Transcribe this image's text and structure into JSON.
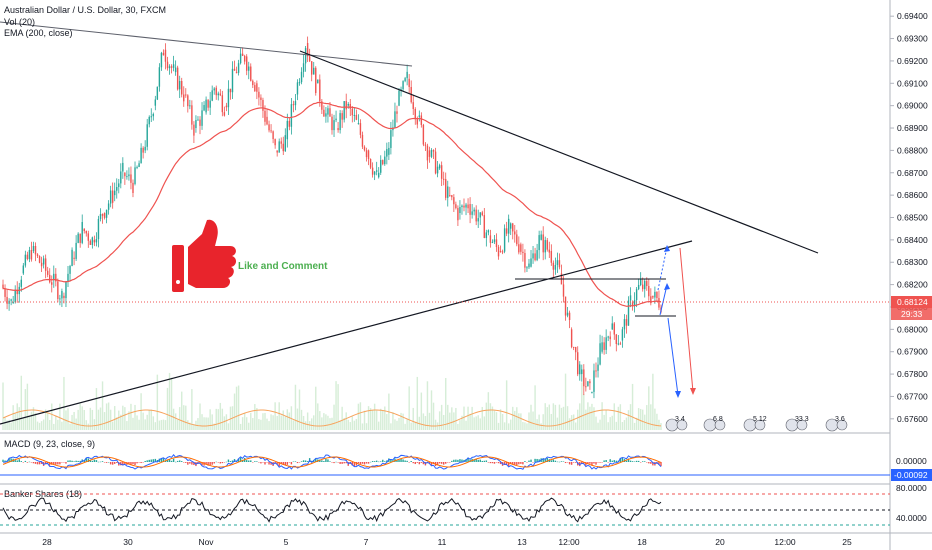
{
  "header": {
    "symbol": "Australian Dollar / U.S. Dollar, 30, FXCM",
    "vol": "Vol (20)",
    "ema": "EMA (200, close)"
  },
  "annotation": {
    "text": "Like and Comment",
    "icon": "thumbs-up-icon",
    "color": "#e8242c"
  },
  "colors": {
    "up": "#26a69a",
    "down": "#ef5350",
    "ema": "#ef5350",
    "line": "#131722",
    "accent": "#2962ff"
  },
  "chart_data": {
    "type": "candlestick",
    "y_ticks": [
      "0.69400",
      "0.69300",
      "0.69200",
      "0.69100",
      "0.69000",
      "0.68900",
      "0.68800",
      "0.68700",
      "0.68600",
      "0.68500",
      "0.68400",
      "0.68300",
      "0.68200",
      "0.68100",
      "0.68000",
      "0.67900",
      "0.67800",
      "0.67700",
      "0.67600"
    ],
    "x_ticks": [
      "28",
      "30",
      "Nov",
      "5",
      "7",
      "11",
      "13",
      "12:00",
      "18",
      "20",
      "12:00",
      "25"
    ],
    "ylim": [
      0.6755,
      0.6945
    ],
    "last_price": "0.68124",
    "countdown": "29:33",
    "macd": {
      "label": "MACD (9, 23, close, 9)",
      "zero_label": "0.00000",
      "value": "-0.00092"
    },
    "banker": {
      "label": "Banker Shares (18)",
      "ticks": [
        "80.0000",
        "40.0000"
      ]
    },
    "event_markers": [
      "3 4",
      "6 8",
      "5 12",
      "33 3",
      "3 6"
    ],
    "price_series": [
      [
        0.682,
        0.6812
      ],
      [
        0.6812,
        0.6825
      ],
      [
        0.6825,
        0.6835
      ],
      [
        0.6835,
        0.6829
      ],
      [
        0.6829,
        0.6822
      ],
      [
        0.6822,
        0.6815
      ],
      [
        0.6815,
        0.6832
      ],
      [
        0.6832,
        0.6845
      ],
      [
        0.6845,
        0.684
      ],
      [
        0.684,
        0.6852
      ],
      [
        0.6852,
        0.686
      ],
      [
        0.686,
        0.687
      ],
      [
        0.687,
        0.6865
      ],
      [
        0.6865,
        0.688
      ],
      [
        0.688,
        0.69
      ],
      [
        0.69,
        0.6925
      ],
      [
        0.6925,
        0.6915
      ],
      [
        0.6915,
        0.6905
      ],
      [
        0.6905,
        0.689
      ],
      [
        0.689,
        0.6897
      ],
      [
        0.6897,
        0.6908
      ],
      [
        0.6908,
        0.69
      ],
      [
        0.69,
        0.6915
      ],
      [
        0.6915,
        0.6922
      ],
      [
        0.6922,
        0.691
      ],
      [
        0.691,
        0.6895
      ],
      [
        0.6895,
        0.688
      ],
      [
        0.688,
        0.6885
      ],
      [
        0.6885,
        0.6905
      ],
      [
        0.6905,
        0.6928
      ],
      [
        0.6928,
        0.691
      ],
      [
        0.691,
        0.6896
      ],
      [
        0.6896,
        0.689
      ],
      [
        0.689,
        0.69
      ],
      [
        0.69,
        0.6892
      ],
      [
        0.6892,
        0.688
      ],
      [
        0.688,
        0.6868
      ],
      [
        0.6868,
        0.6878
      ],
      [
        0.6878,
        0.69
      ],
      [
        0.69,
        0.6912
      ],
      [
        0.6912,
        0.6895
      ],
      [
        0.6895,
        0.688
      ],
      [
        0.688,
        0.6872
      ],
      [
        0.6872,
        0.686
      ],
      [
        0.686,
        0.6852
      ],
      [
        0.6852,
        0.6856
      ],
      [
        0.6856,
        0.685
      ],
      [
        0.685,
        0.6842
      ],
      [
        0.6842,
        0.6835
      ],
      [
        0.6835,
        0.6845
      ],
      [
        0.6845,
        0.6838
      ],
      [
        0.6838,
        0.6828
      ],
      [
        0.6828,
        0.684
      ],
      [
        0.684,
        0.6835
      ],
      [
        0.6835,
        0.6825
      ],
      [
        0.6825,
        0.68
      ],
      [
        0.68,
        0.678
      ],
      [
        0.678,
        0.6772
      ],
      [
        0.6772,
        0.679
      ],
      [
        0.679,
        0.68
      ],
      [
        0.68,
        0.6795
      ],
      [
        0.6795,
        0.6812
      ],
      [
        0.6812,
        0.682
      ],
      [
        0.682,
        0.6815
      ],
      [
        0.6815,
        0.6812
      ]
    ]
  }
}
